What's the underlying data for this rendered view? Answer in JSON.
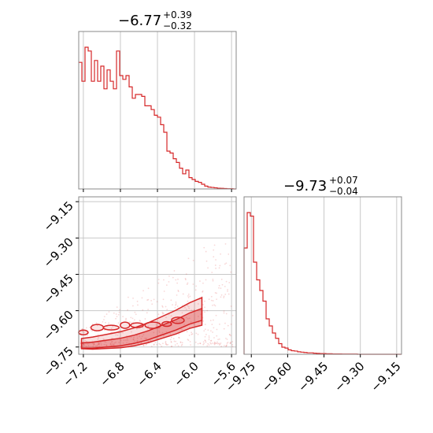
{
  "colors": {
    "accent": "#d62728",
    "grid": "#c8c8c8",
    "frame": "#888888"
  },
  "chart_data": [
    {
      "type": "bar",
      "panel": "top-left histogram",
      "title_value": "−6.77",
      "title_plus": "+0.39",
      "title_minus": "−0.32",
      "x_range": [
        -7.25,
        -5.55
      ],
      "x_ticks": [
        "−7.2",
        "−6.8",
        "−6.4",
        "−6.0",
        "−5.6"
      ],
      "x_tick_values": [
        -7.2,
        -6.8,
        -6.4,
        -6.0,
        -5.6
      ],
      "grid": true,
      "bins_start": -7.25,
      "bin_width": 0.034,
      "counts": [
        0.67,
        0.57,
        0.75,
        0.73,
        0.57,
        0.68,
        0.57,
        0.65,
        0.53,
        0.63,
        0.57,
        0.53,
        0.73,
        0.6,
        0.58,
        0.6,
        0.54,
        0.48,
        0.5,
        0.5,
        0.49,
        0.44,
        0.44,
        0.42,
        0.39,
        0.38,
        0.34,
        0.3,
        0.2,
        0.19,
        0.16,
        0.14,
        0.11,
        0.08,
        0.1,
        0.06,
        0.05,
        0.04,
        0.035,
        0.025,
        0.015,
        0.01,
        0.008,
        0.006,
        0.004,
        0.003,
        0.002,
        0.001,
        0.001,
        0.0
      ]
    },
    {
      "type": "bar",
      "panel": "bottom-right histogram",
      "title_value": "−9.73",
      "title_plus": "+0.07",
      "title_minus": "−0.04",
      "x_range": [
        -9.78,
        -9.13
      ],
      "x_ticks": [
        "−9.75",
        "−9.60",
        "−9.45",
        "−9.30",
        "−9.15"
      ],
      "x_tick_values": [
        -9.75,
        -9.6,
        -9.45,
        -9.3,
        -9.15
      ],
      "grid": true,
      "bins_start": -9.78,
      "bin_width": 0.013,
      "counts": [
        0.6,
        0.8,
        0.78,
        0.52,
        0.42,
        0.36,
        0.3,
        0.2,
        0.16,
        0.12,
        0.09,
        0.06,
        0.04,
        0.035,
        0.025,
        0.02,
        0.018,
        0.014,
        0.012,
        0.01,
        0.008,
        0.008,
        0.006,
        0.005,
        0.004,
        0.004,
        0.003,
        0.003,
        0.002,
        0.002,
        0.002,
        0.001,
        0.001,
        0.001,
        0.001,
        0.001,
        0.0,
        0.0,
        0.0,
        0.0,
        0.0,
        0.0,
        0.0,
        0.0,
        0.0,
        0.0,
        0.0,
        0.0,
        0.0,
        0.0
      ]
    },
    {
      "type": "scatter",
      "panel": "bottom-left 2D density",
      "x_range": [
        -7.25,
        -5.55
      ],
      "y_range": [
        -9.78,
        -9.13
      ],
      "x_ticks": [
        "−7.2",
        "−6.8",
        "−6.4",
        "−6.0",
        "−5.6"
      ],
      "x_tick_values": [
        -7.2,
        -6.8,
        -6.4,
        -6.0,
        -5.6
      ],
      "y_ticks": [
        "−9.15",
        "−9.30",
        "−9.45",
        "−9.60",
        "−9.75"
      ],
      "y_tick_values": [
        -9.15,
        -9.3,
        -9.45,
        -9.6,
        -9.75
      ],
      "grid": true,
      "core_band": [
        [
          -7.22,
          -9.745
        ],
        [
          -7.1,
          -9.745
        ],
        [
          -6.95,
          -9.74
        ],
        [
          -6.8,
          -9.735
        ],
        [
          -6.65,
          -9.725
        ],
        [
          -6.5,
          -9.71
        ],
        [
          -6.35,
          -9.69
        ],
        [
          -6.2,
          -9.67
        ],
        [
          -6.05,
          -9.645
        ],
        [
          -5.92,
          -9.63
        ]
      ],
      "blobs": [
        [
          -7.2,
          -9.69
        ],
        [
          -7.05,
          -9.67
        ],
        [
          -6.9,
          -9.67
        ],
        [
          -6.75,
          -9.66
        ],
        [
          -6.62,
          -9.66
        ],
        [
          -6.45,
          -9.66
        ],
        [
          -6.3,
          -9.655
        ],
        [
          -6.18,
          -9.64
        ]
      ]
    }
  ]
}
